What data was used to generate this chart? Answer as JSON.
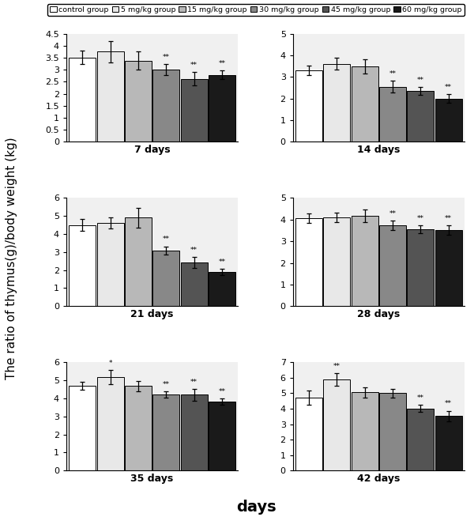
{
  "groups": [
    "control group",
    "5 mg/kg group",
    "15 mg/kg group",
    "30 mg/kg group",
    "45 mg/kg group",
    "60 mg/kg group"
  ],
  "colors": [
    "#FFFFFF",
    "#E8E8E8",
    "#B8B8B8",
    "#888888",
    "#545454",
    "#1A1A1A"
  ],
  "edge_color": "#000000",
  "subplots": [
    {
      "title": "7 days",
      "ylim": [
        0,
        4.5
      ],
      "yticks": [
        0,
        0.5,
        1,
        1.5,
        2,
        2.5,
        3,
        3.5,
        4,
        4.5
      ],
      "values": [
        3.5,
        3.75,
        3.38,
        3.0,
        2.62,
        2.78
      ],
      "errors": [
        0.28,
        0.45,
        0.38,
        0.22,
        0.28,
        0.18
      ],
      "sig": [
        "",
        "",
        "",
        "**",
        "**",
        "**"
      ]
    },
    {
      "title": "14 days",
      "ylim": [
        0,
        5
      ],
      "yticks": [
        0,
        1,
        2,
        3,
        4,
        5
      ],
      "values": [
        3.3,
        3.6,
        3.48,
        2.55,
        2.35,
        2.0
      ],
      "errors": [
        0.22,
        0.28,
        0.32,
        0.28,
        0.18,
        0.2
      ],
      "sig": [
        "",
        "",
        "",
        "**",
        "**",
        "**"
      ]
    },
    {
      "title": "21 days",
      "ylim": [
        0,
        6
      ],
      "yticks": [
        0,
        1,
        2,
        3,
        4,
        5,
        6
      ],
      "values": [
        4.5,
        4.62,
        4.92,
        3.1,
        2.42,
        1.9
      ],
      "errors": [
        0.32,
        0.3,
        0.55,
        0.22,
        0.3,
        0.18
      ],
      "sig": [
        "",
        "",
        "",
        "**",
        "**",
        "**"
      ]
    },
    {
      "title": "28 days",
      "ylim": [
        0,
        5
      ],
      "yticks": [
        0,
        1,
        2,
        3,
        4,
        5
      ],
      "values": [
        4.05,
        4.1,
        4.18,
        3.72,
        3.55,
        3.52
      ],
      "errors": [
        0.22,
        0.22,
        0.28,
        0.22,
        0.18,
        0.22
      ],
      "sig": [
        "",
        "",
        "",
        "**",
        "**",
        "**"
      ]
    },
    {
      "title": "35 days",
      "ylim": [
        0,
        6
      ],
      "yticks": [
        0,
        1,
        2,
        3,
        4,
        5,
        6
      ],
      "values": [
        4.68,
        5.18,
        4.68,
        4.2,
        4.2,
        3.82
      ],
      "errors": [
        0.22,
        0.38,
        0.3,
        0.18,
        0.32,
        0.18
      ],
      "sig": [
        "",
        "*",
        "",
        "**",
        "**",
        "**"
      ]
    },
    {
      "title": "42 days",
      "ylim": [
        0,
        7
      ],
      "yticks": [
        0,
        1,
        2,
        3,
        4,
        5,
        6,
        7
      ],
      "values": [
        4.72,
        5.88,
        5.05,
        5.02,
        4.02,
        3.52
      ],
      "errors": [
        0.48,
        0.42,
        0.32,
        0.28,
        0.22,
        0.35
      ],
      "sig": [
        "",
        "**",
        "",
        "",
        "**",
        "**"
      ]
    }
  ],
  "ylabel": "The ratio of thymus(g)/body weight (kg)",
  "xlabel": "days",
  "title_fontsize": 9,
  "tick_fontsize": 8,
  "label_fontsize": 11,
  "legend_fontsize": 7.5
}
